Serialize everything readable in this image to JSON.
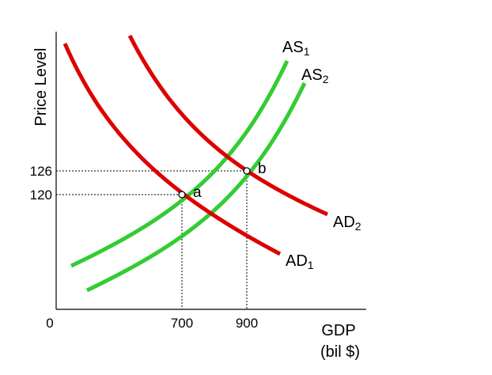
{
  "chart_data": {
    "type": "line",
    "title": "",
    "xlabel_lines": [
      "GDP",
      "(bil $)"
    ],
    "ylabel": "Price Level",
    "origin_label": "0",
    "x_ticks": [
      700,
      900
    ],
    "y_ticks": [
      120,
      126
    ],
    "grid": false,
    "colors": {
      "AD": "#dd0000",
      "AS": "#33cc33"
    },
    "curves": [
      {
        "id": "AS1",
        "kind": "AS",
        "label": "AS",
        "sub": "1",
        "color": "#33cc33"
      },
      {
        "id": "AS2",
        "kind": "AS",
        "label": "AS",
        "sub": "2",
        "color": "#33cc33"
      },
      {
        "id": "AD1",
        "kind": "AD",
        "label": "AD",
        "sub": "1",
        "color": "#dd0000"
      },
      {
        "id": "AD2",
        "kind": "AD",
        "label": "AD",
        "sub": "2",
        "color": "#dd0000"
      }
    ],
    "points": [
      {
        "label": "a",
        "x": 700,
        "y": 120
      },
      {
        "label": "b",
        "x": 900,
        "y": 126
      }
    ]
  }
}
